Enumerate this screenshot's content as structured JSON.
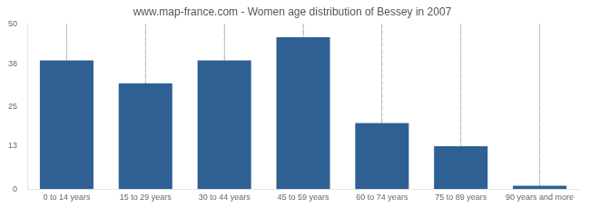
{
  "chart_data": {
    "type": "bar",
    "title": "www.map-france.com - Women age distribution of Bessey in 2007",
    "categories": [
      "0 to 14 years",
      "15 to 29 years",
      "30 to 44 years",
      "45 to 59 years",
      "60 to 74 years",
      "75 to 89 years",
      "90 years and more"
    ],
    "values": [
      39,
      32,
      39,
      46,
      20,
      13,
      1
    ],
    "color": "#2e6094",
    "ylim": [
      0,
      50
    ],
    "yticks": [
      0,
      13,
      25,
      38,
      50
    ],
    "grid": true
  }
}
